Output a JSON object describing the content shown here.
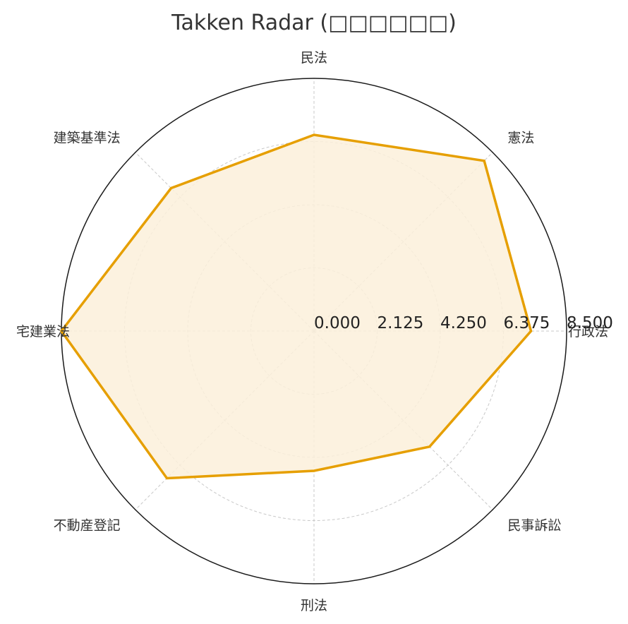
{
  "chart_data": {
    "type": "radar",
    "title": "Takken Radar (□□□□□□)",
    "categories": [
      "行政法",
      "憲法",
      "民法",
      "建築基準法",
      "宅建業法",
      "不動産登記",
      "刑法",
      "民事訴訟"
    ],
    "series": [
      {
        "values": [
          7.3,
          8.1,
          6.6,
          6.8,
          8.5,
          7.0,
          4.7,
          5.5
        ],
        "color": "#E69F00"
      }
    ],
    "rlim": [
      0,
      8.5
    ],
    "rticks": [
      0,
      2.125,
      4.25,
      6.375,
      8.5
    ],
    "rtick_labels": [
      "0.000",
      "2.125",
      "4.250",
      "6.375",
      "8.500"
    ],
    "grid": true,
    "fill_color": "#FBF0DB",
    "line_color": "#E69F00"
  }
}
